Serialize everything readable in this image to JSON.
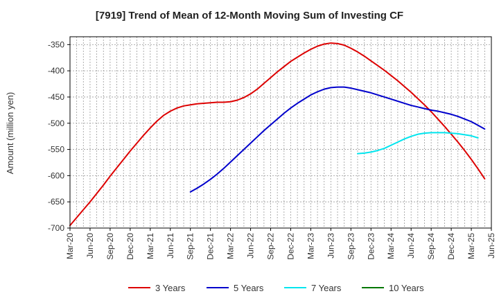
{
  "chart_data": {
    "type": "line",
    "title": "[7919]  Trend of Mean of 12-Month Moving Sum of Investing CF",
    "xlabel": "",
    "ylabel": "Amount (million yen)",
    "ylim": [
      -700,
      -335
    ],
    "yticks": [
      -350,
      -400,
      -450,
      -500,
      -550,
      -600,
      -650,
      -700
    ],
    "grid": true,
    "legend_position": "bottom",
    "x_tick_labels": [
      "Mar-20",
      "Jun-20",
      "Sep-20",
      "Dec-20",
      "Mar-21",
      "Jun-21",
      "Sep-21",
      "Dec-21",
      "Mar-22",
      "Jun-22",
      "Sep-22",
      "Dec-22",
      "Mar-23",
      "Jun-23",
      "Sep-23",
      "Dec-23",
      "Mar-24",
      "Jun-24",
      "Sep-24",
      "Dec-24",
      "Mar-25",
      "Jun-25"
    ],
    "series": [
      {
        "name": "3 Years",
        "color": "#dd0000",
        "start_index": 0,
        "values": [
          -695,
          -680,
          -665,
          -650,
          -634,
          -618,
          -601,
          -585,
          -569,
          -553,
          -538,
          -523,
          -509,
          -496,
          -485,
          -477,
          -471,
          -467,
          -465,
          -463,
          -462,
          -461,
          -460,
          -460,
          -459,
          -456,
          -451,
          -444,
          -435,
          -424,
          -413,
          -402,
          -392,
          -382,
          -374,
          -366,
          -359,
          -353,
          -349,
          -347,
          -348,
          -351,
          -357,
          -364,
          -372,
          -381,
          -390,
          -399,
          -409,
          -419,
          -430,
          -441,
          -453,
          -465,
          -478,
          -492,
          -506,
          -521,
          -536,
          -552,
          -569,
          -587,
          -606
        ]
      },
      {
        "name": "5 Years",
        "color": "#0000cc",
        "start_index": 18,
        "values": [
          -631,
          -624,
          -616,
          -607,
          -597,
          -586,
          -574,
          -562,
          -550,
          -538,
          -526,
          -514,
          -503,
          -492,
          -481,
          -471,
          -462,
          -454,
          -446,
          -440,
          -435,
          -432,
          -431,
          -431,
          -433,
          -436,
          -439,
          -442,
          -446,
          -450,
          -454,
          -458,
          -462,
          -466,
          -469,
          -472,
          -475,
          -477,
          -480,
          -483,
          -487,
          -492,
          -497,
          -504,
          -511
        ]
      },
      {
        "name": "7 Years",
        "color": "#00e5ee",
        "start_index": 43,
        "values": [
          -558,
          -557,
          -555,
          -552,
          -548,
          -542,
          -536,
          -530,
          -525,
          -521,
          -519,
          -518,
          -518,
          -518,
          -519,
          -520,
          -522,
          -524,
          -528
        ]
      },
      {
        "name": "10 Years",
        "color": "#007700",
        "start_index": 0,
        "values": []
      }
    ]
  }
}
